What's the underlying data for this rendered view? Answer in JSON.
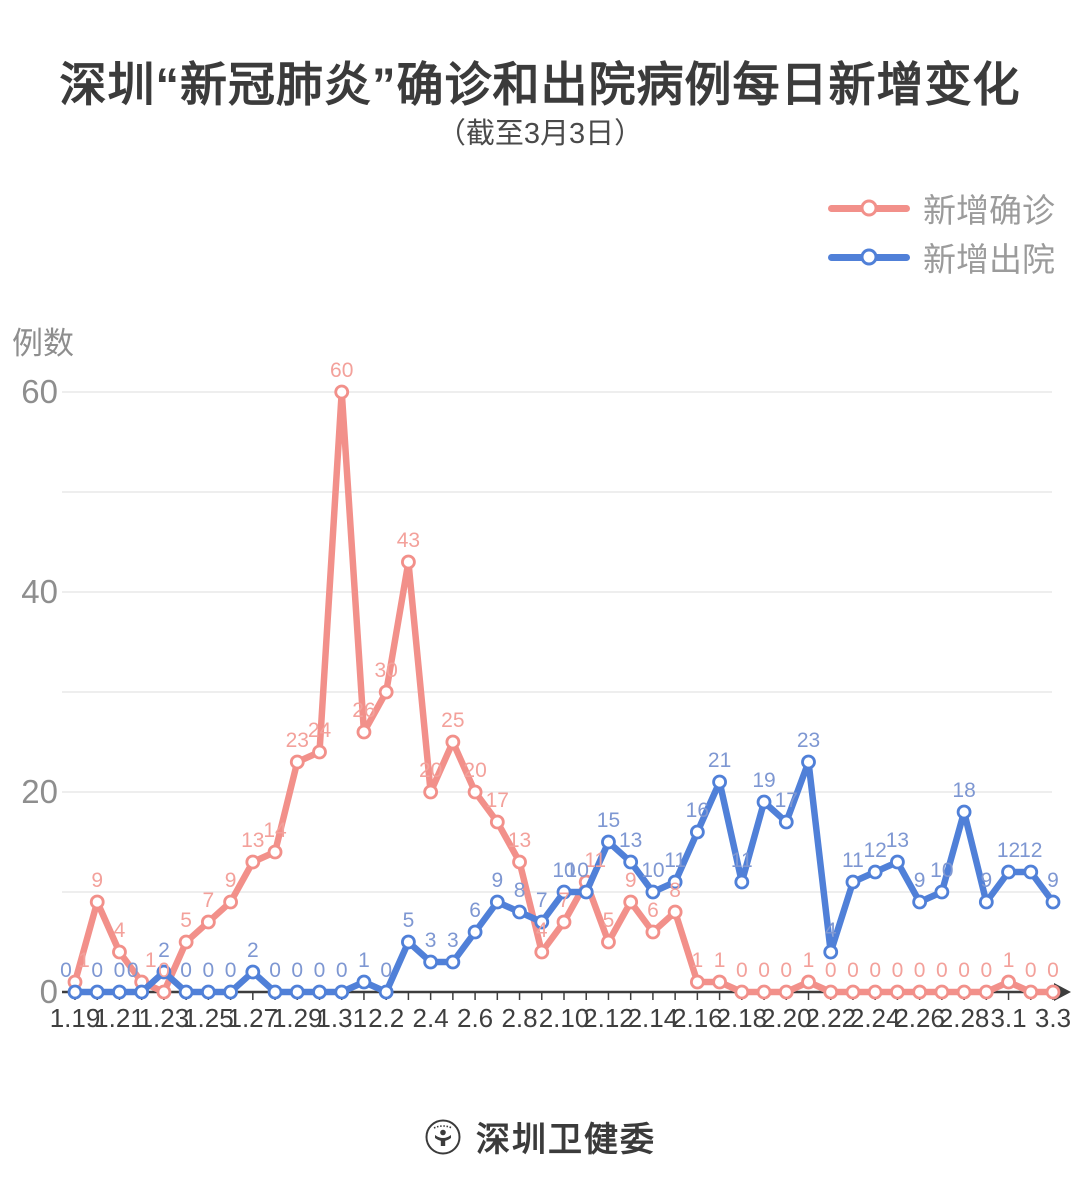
{
  "title": "深圳“新冠肺炎”确诊和出院病例每日新增变化",
  "subtitle": "（截至3月3日）",
  "legend": [
    {
      "label": "新增确诊",
      "color": "#F2908A"
    },
    {
      "label": "新增出院",
      "color": "#5080D8"
    }
  ],
  "footer": {
    "logo_icon": "shenzhen-health-commission-seal",
    "text": "深圳卫健委"
  },
  "chart_data": {
    "type": "line",
    "title": "深圳“新冠肺炎”确诊和出院病例每日新增变化",
    "subtitle": "（截至3月3日）",
    "ylabel": "例数",
    "xlabel": "",
    "ylim": [
      0,
      60
    ],
    "yticks": [
      0,
      20,
      40,
      60
    ],
    "grid": true,
    "grid_interval": 10,
    "legend_position": "top-right",
    "marker": "open-circle",
    "point_labels": true,
    "x": [
      "1.19",
      "1.20",
      "1.21",
      "1.22",
      "1.23",
      "1.24",
      "1.25",
      "1.26",
      "1.27",
      "1.28",
      "1.29",
      "1.30",
      "1.31",
      "2.1",
      "2.2",
      "2.3",
      "2.4",
      "2.5",
      "2.6",
      "2.7",
      "2.8",
      "2.9",
      "2.10",
      "2.11",
      "2.12",
      "2.13",
      "2.14",
      "2.15",
      "2.16",
      "2.17",
      "2.18",
      "2.19",
      "2.20",
      "2.21",
      "2.22",
      "2.23",
      "2.24",
      "2.25",
      "2.26",
      "2.27",
      "2.28",
      "2.29",
      "3.1",
      "3.2",
      "3.3"
    ],
    "x_tick_labels": [
      "1.19",
      "1.21",
      "1.23",
      "1.25",
      "1.27",
      "1.29",
      "1.31",
      "2.2",
      "2.4",
      "2.6",
      "2.8",
      "2.10",
      "2.12",
      "2.14",
      "2.16",
      "2.18",
      "2.20",
      "2.22",
      "2.24",
      "2.26",
      "2.28",
      "3.1",
      "3.3"
    ],
    "series": [
      {
        "name": "新增确诊",
        "color": "#F2908A",
        "label_color": "#F3A19B",
        "values": [
          1,
          9,
          4,
          1,
          0,
          5,
          7,
          9,
          13,
          14,
          23,
          24,
          60,
          26,
          30,
          43,
          20,
          25,
          20,
          17,
          13,
          4,
          7,
          11,
          5,
          9,
          6,
          8,
          1,
          1,
          0,
          0,
          0,
          1,
          0,
          0,
          0,
          0,
          0,
          0,
          0,
          0,
          1,
          0,
          0
        ]
      },
      {
        "name": "新增出院",
        "color": "#5080D8",
        "label_color": "#7E97D2",
        "values": [
          0,
          0,
          0,
          0,
          2,
          0,
          0,
          0,
          2,
          0,
          0,
          0,
          0,
          1,
          0,
          5,
          3,
          3,
          6,
          9,
          8,
          7,
          10,
          10,
          15,
          13,
          10,
          11,
          16,
          21,
          11,
          19,
          17,
          23,
          4,
          11,
          12,
          13,
          9,
          10,
          18,
          9,
          12,
          12,
          9
        ]
      }
    ],
    "colors": {
      "axis": "#3d3d3d",
      "gridline": "#e8e8e8",
      "y_tick_text": "#8e8e8e",
      "x_tick_text": "#3f3f3f"
    }
  }
}
